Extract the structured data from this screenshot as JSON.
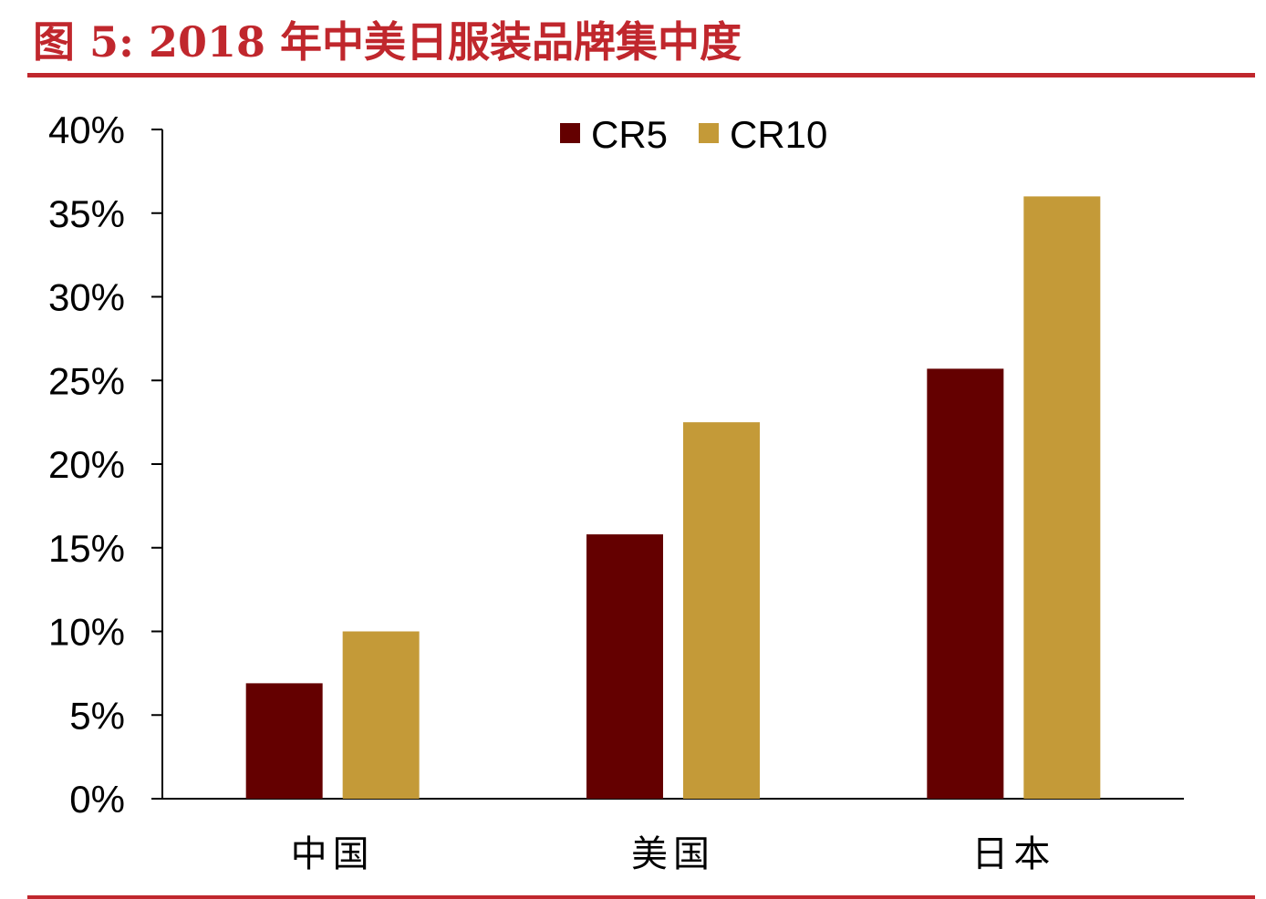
{
  "figure": {
    "title": "图 5:  2018 年中美日服装品牌集中度"
  },
  "colors": {
    "accent": "#c0272d",
    "cr5": "#640000",
    "cr10": "#c49a38"
  },
  "chart_data": {
    "type": "bar",
    "categories": [
      "中国",
      "美国",
      "日本"
    ],
    "series": [
      {
        "name": "CR5",
        "values": [
          6.9,
          15.8,
          25.7
        ]
      },
      {
        "name": "CR10",
        "values": [
          10.0,
          22.5,
          36.0
        ]
      }
    ],
    "yticks": [
      "0%",
      "5%",
      "10%",
      "15%",
      "20%",
      "25%",
      "30%",
      "35%",
      "40%"
    ],
    "ylim": [
      0,
      40
    ],
    "yunit": "%",
    "grid": false,
    "legend": "top-center"
  }
}
